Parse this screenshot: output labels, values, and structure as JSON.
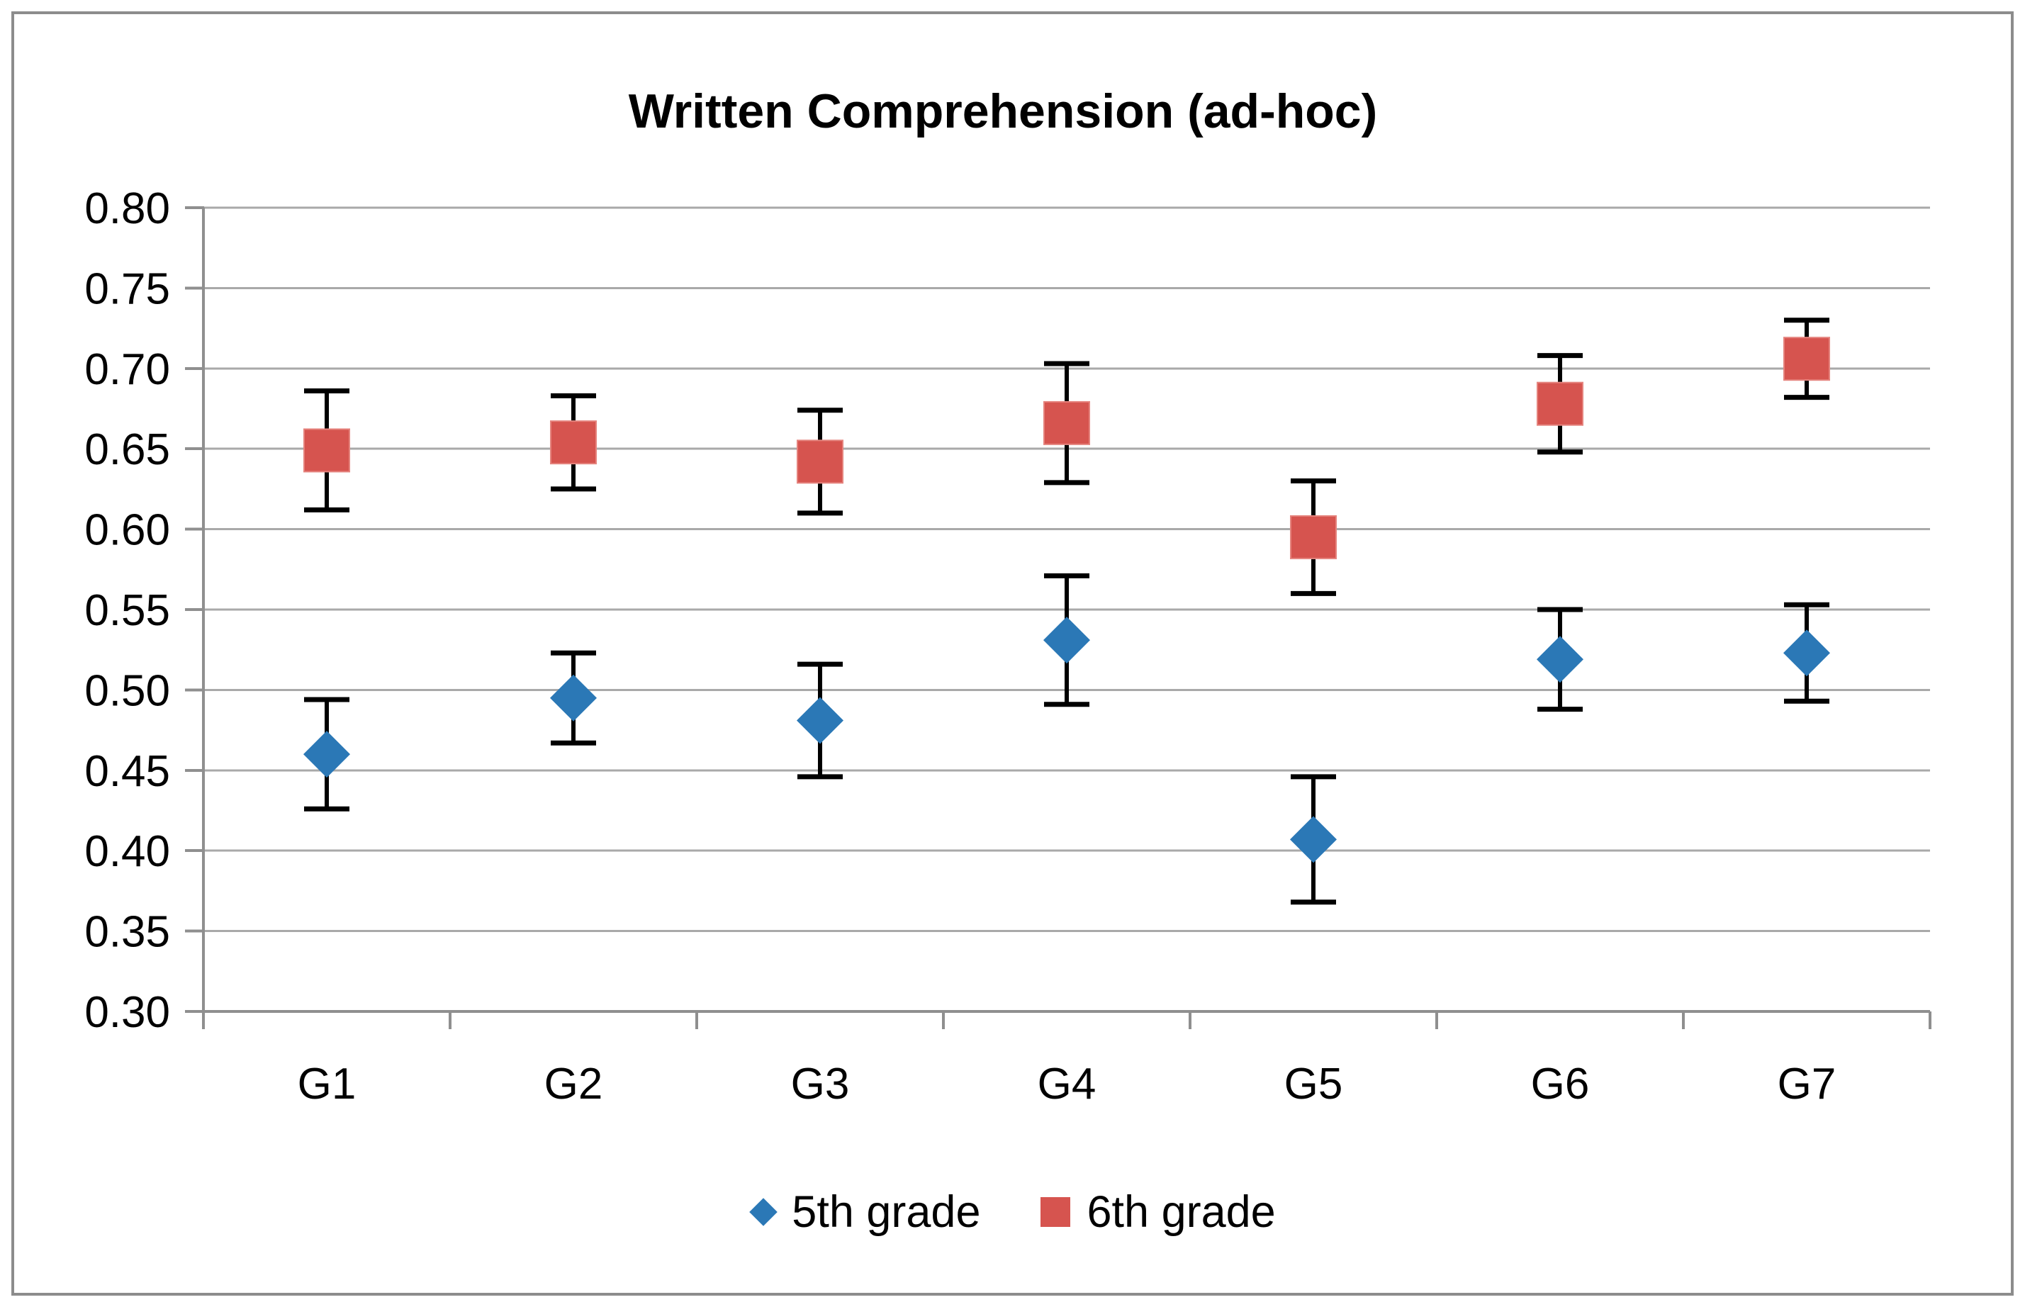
{
  "title": "Written Comprehension (ad-hoc)",
  "legend": {
    "items": [
      {
        "label": "5th grade",
        "marker": "diamond-icon",
        "color": "#2B78B6"
      },
      {
        "label": "6th grade",
        "marker": "square-icon",
        "color": "#D6544F"
      }
    ]
  },
  "chart_data": {
    "type": "scatter",
    "title": "Written Comprehension (ad-hoc)",
    "categories": [
      "G1",
      "G2",
      "G3",
      "G4",
      "G5",
      "G6",
      "G7"
    ],
    "series": [
      {
        "name": "5th grade",
        "marker": "diamond",
        "color": "#2B78B6",
        "values": [
          0.46,
          0.495,
          0.481,
          0.531,
          0.407,
          0.519,
          0.523
        ],
        "error": [
          0.034,
          0.028,
          0.035,
          0.04,
          0.039,
          0.031,
          0.03
        ]
      },
      {
        "name": "6th grade",
        "marker": "square",
        "color": "#D6544F",
        "values": [
          0.649,
          0.654,
          0.642,
          0.666,
          0.595,
          0.678,
          0.706
        ],
        "error": [
          0.037,
          0.029,
          0.032,
          0.037,
          0.035,
          0.03,
          0.024
        ]
      }
    ],
    "ylim": [
      0.3,
      0.8
    ],
    "ytick_step": 0.05,
    "ytick_labels": [
      "0.30",
      "0.35",
      "0.40",
      "0.45",
      "0.50",
      "0.55",
      "0.60",
      "0.65",
      "0.70",
      "0.75",
      "0.80"
    ],
    "xlabel": "",
    "ylabel": "",
    "grid": true,
    "error_bars": true,
    "legend_position": "bottom",
    "colors": {
      "gridline": "#A9A9A9",
      "axis": "#8F8F8F",
      "error_bar": "#000000",
      "text": "#000000",
      "background": "#FFFFFF",
      "frame_border": "#8C8C8C"
    }
  }
}
